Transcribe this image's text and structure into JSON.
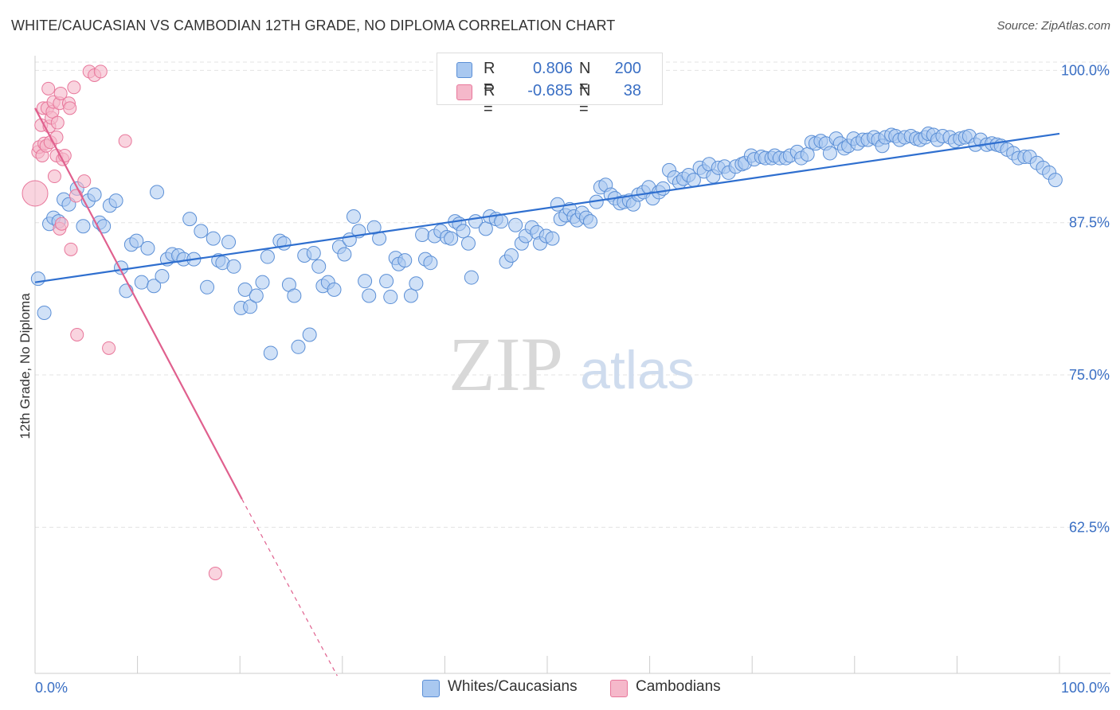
{
  "title": "WHITE/CAUCASIAN VS CAMBODIAN 12TH GRADE, NO DIPLOMA CORRELATION CHART",
  "source": "Source: ZipAtlas.com",
  "watermark": {
    "zip": "ZIP",
    "atlas": "atlas"
  },
  "legend_top": [
    {
      "r_label": "R =",
      "r_value": "0.806",
      "n_label": "N =",
      "n_value": "200",
      "color": "#a9c8f0"
    },
    {
      "r_label": "R =",
      "r_value": "-0.685",
      "n_label": "N =",
      "n_value": "38",
      "color": "#f5b8ca"
    }
  ],
  "legend_bottom": [
    {
      "label": "Whites/Caucasians",
      "color": "#a9c8f0"
    },
    {
      "label": "Cambodians",
      "color": "#f5b8ca"
    }
  ],
  "colors": {
    "blue_fill": "#a9c8f0",
    "blue_stroke": "#5b8fd6",
    "blue_line": "#2f6fcf",
    "pink_fill": "#f5b8ca",
    "pink_stroke": "#e8779b",
    "pink_line": "#e0608e",
    "tick_label": "#3a6fc4",
    "grid": "#e3e3e3"
  },
  "chart_data": {
    "type": "scatter",
    "xlabel": "",
    "ylabel": "12th Grade, No Diploma",
    "xlim": [
      0,
      100
    ],
    "ylim": [
      50.5,
      101.2
    ],
    "x_tick_labels": [
      "0.0%",
      "100.0%"
    ],
    "y_ticks": [
      100.0,
      87.5,
      75.0,
      62.5
    ],
    "y_tick_labels": [
      "100.0%",
      "87.5%",
      "75.0%",
      "62.5%"
    ],
    "grid": "horizontal dashed",
    "series": [
      {
        "name": "Whites/Caucasians",
        "trend": {
          "x": [
            0,
            100
          ],
          "y": [
            82.6,
            94.8
          ]
        },
        "points": [
          [
            0.3,
            82.9
          ],
          [
            0.9,
            80.1
          ],
          [
            1.4,
            87.4
          ],
          [
            1.8,
            87.9
          ],
          [
            2.3,
            87.6
          ],
          [
            2.8,
            89.4
          ],
          [
            3.3,
            89.0
          ],
          [
            4.1,
            90.3
          ],
          [
            4.7,
            87.2
          ],
          [
            5.2,
            89.3
          ],
          [
            5.8,
            89.8
          ],
          [
            6.3,
            87.5
          ],
          [
            6.7,
            87.2
          ],
          [
            7.3,
            88.9
          ],
          [
            7.9,
            89.3
          ],
          [
            8.4,
            83.8
          ],
          [
            8.9,
            81.9
          ],
          [
            9.4,
            85.7
          ],
          [
            9.9,
            86.0
          ],
          [
            10.4,
            82.6
          ],
          [
            11.0,
            85.4
          ],
          [
            11.6,
            82.3
          ],
          [
            11.9,
            90.0
          ],
          [
            12.4,
            83.1
          ],
          [
            12.9,
            84.5
          ],
          [
            13.4,
            84.9
          ],
          [
            14.0,
            84.8
          ],
          [
            14.5,
            84.5
          ],
          [
            15.1,
            87.8
          ],
          [
            15.5,
            84.5
          ],
          [
            16.2,
            86.8
          ],
          [
            16.8,
            82.2
          ],
          [
            17.4,
            86.2
          ],
          [
            17.9,
            84.4
          ],
          [
            18.3,
            84.2
          ],
          [
            18.9,
            85.9
          ],
          [
            19.4,
            83.9
          ],
          [
            20.1,
            80.5
          ],
          [
            20.5,
            82.0
          ],
          [
            21.0,
            80.6
          ],
          [
            21.6,
            81.5
          ],
          [
            22.2,
            82.6
          ],
          [
            22.7,
            84.7
          ],
          [
            23.0,
            76.8
          ],
          [
            23.9,
            86.0
          ],
          [
            24.3,
            85.8
          ],
          [
            24.8,
            82.4
          ],
          [
            25.3,
            81.5
          ],
          [
            25.7,
            77.3
          ],
          [
            26.3,
            84.8
          ],
          [
            26.8,
            78.3
          ],
          [
            27.2,
            85.0
          ],
          [
            27.7,
            83.9
          ],
          [
            28.1,
            82.3
          ],
          [
            28.6,
            82.6
          ],
          [
            29.2,
            82.0
          ],
          [
            29.7,
            85.5
          ],
          [
            30.2,
            84.9
          ],
          [
            30.7,
            86.1
          ],
          [
            31.1,
            88.0
          ],
          [
            31.6,
            86.8
          ],
          [
            32.2,
            82.7
          ],
          [
            32.6,
            81.5
          ],
          [
            33.1,
            87.1
          ],
          [
            33.6,
            86.2
          ],
          [
            34.3,
            82.7
          ],
          [
            34.7,
            81.4
          ],
          [
            35.2,
            84.6
          ],
          [
            35.5,
            84.1
          ],
          [
            36.1,
            84.4
          ],
          [
            36.7,
            81.5
          ],
          [
            37.2,
            82.5
          ],
          [
            37.8,
            86.5
          ],
          [
            38.1,
            84.5
          ],
          [
            38.6,
            84.2
          ],
          [
            39.0,
            86.4
          ],
          [
            39.6,
            86.8
          ],
          [
            40.2,
            86.3
          ],
          [
            40.6,
            86.2
          ],
          [
            41.0,
            87.6
          ],
          [
            41.4,
            87.4
          ],
          [
            41.8,
            86.8
          ],
          [
            42.3,
            85.8
          ],
          [
            42.6,
            83.0
          ],
          [
            43.0,
            87.6
          ],
          [
            44.0,
            87.0
          ],
          [
            44.4,
            88.0
          ],
          [
            45.0,
            87.8
          ],
          [
            45.5,
            87.6
          ],
          [
            46.0,
            84.3
          ],
          [
            46.5,
            84.8
          ],
          [
            46.9,
            87.3
          ],
          [
            47.5,
            85.8
          ],
          [
            47.9,
            86.4
          ],
          [
            48.5,
            87.1
          ],
          [
            49.0,
            86.7
          ],
          [
            49.3,
            85.8
          ],
          [
            49.9,
            86.4
          ],
          [
            50.5,
            86.2
          ],
          [
            51.0,
            89.0
          ],
          [
            51.3,
            87.8
          ],
          [
            51.8,
            88.1
          ],
          [
            52.2,
            88.6
          ],
          [
            52.6,
            88.0
          ],
          [
            52.9,
            87.7
          ],
          [
            53.4,
            88.3
          ],
          [
            53.8,
            87.9
          ],
          [
            54.2,
            87.6
          ],
          [
            54.8,
            89.2
          ],
          [
            55.2,
            90.4
          ],
          [
            55.7,
            90.6
          ],
          [
            56.2,
            89.8
          ],
          [
            56.6,
            89.5
          ],
          [
            57.1,
            89.1
          ],
          [
            57.5,
            89.2
          ],
          [
            58.0,
            89.3
          ],
          [
            58.4,
            89.0
          ],
          [
            58.9,
            89.8
          ],
          [
            59.4,
            90.0
          ],
          [
            59.9,
            90.4
          ],
          [
            60.3,
            89.5
          ],
          [
            60.9,
            90.0
          ],
          [
            61.3,
            90.3
          ],
          [
            61.9,
            91.8
          ],
          [
            62.4,
            91.2
          ],
          [
            62.9,
            90.8
          ],
          [
            63.3,
            91.1
          ],
          [
            63.8,
            91.4
          ],
          [
            64.3,
            91.0
          ],
          [
            64.9,
            92.0
          ],
          [
            65.3,
            91.7
          ],
          [
            65.8,
            92.3
          ],
          [
            66.2,
            91.3
          ],
          [
            66.7,
            92.0
          ],
          [
            67.3,
            92.1
          ],
          [
            67.7,
            91.6
          ],
          [
            68.4,
            92.1
          ],
          [
            69.0,
            92.3
          ],
          [
            69.3,
            92.4
          ],
          [
            69.9,
            93.0
          ],
          [
            70.2,
            92.7
          ],
          [
            70.9,
            92.9
          ],
          [
            71.3,
            92.8
          ],
          [
            71.9,
            92.8
          ],
          [
            72.2,
            93.0
          ],
          [
            72.7,
            92.8
          ],
          [
            73.3,
            92.8
          ],
          [
            73.7,
            93.0
          ],
          [
            74.4,
            93.3
          ],
          [
            74.8,
            92.8
          ],
          [
            75.4,
            93.1
          ],
          [
            75.8,
            94.1
          ],
          [
            76.2,
            94.0
          ],
          [
            76.7,
            94.2
          ],
          [
            77.2,
            94.0
          ],
          [
            77.6,
            93.2
          ],
          [
            78.2,
            94.4
          ],
          [
            78.6,
            94.0
          ],
          [
            79.0,
            93.6
          ],
          [
            79.4,
            93.8
          ],
          [
            79.9,
            94.4
          ],
          [
            80.3,
            94.0
          ],
          [
            80.8,
            94.3
          ],
          [
            81.3,
            94.3
          ],
          [
            81.9,
            94.5
          ],
          [
            82.3,
            94.3
          ],
          [
            82.7,
            93.8
          ],
          [
            83.0,
            94.5
          ],
          [
            83.6,
            94.7
          ],
          [
            84.0,
            94.6
          ],
          [
            84.4,
            94.3
          ],
          [
            84.9,
            94.5
          ],
          [
            85.5,
            94.6
          ],
          [
            86.0,
            94.4
          ],
          [
            86.4,
            94.3
          ],
          [
            86.9,
            94.5
          ],
          [
            87.2,
            94.8
          ],
          [
            87.7,
            94.7
          ],
          [
            88.1,
            94.3
          ],
          [
            88.6,
            94.6
          ],
          [
            89.3,
            94.5
          ],
          [
            89.8,
            94.2
          ],
          [
            90.3,
            94.4
          ],
          [
            90.8,
            94.5
          ],
          [
            91.2,
            94.6
          ],
          [
            91.8,
            93.9
          ],
          [
            92.3,
            94.3
          ],
          [
            92.9,
            93.9
          ],
          [
            93.4,
            94.0
          ],
          [
            93.9,
            93.9
          ],
          [
            94.3,
            93.8
          ],
          [
            94.9,
            93.5
          ],
          [
            95.5,
            93.2
          ],
          [
            96.0,
            92.8
          ],
          [
            96.6,
            92.9
          ],
          [
            97.1,
            92.9
          ],
          [
            97.8,
            92.4
          ],
          [
            98.4,
            92.0
          ],
          [
            99.0,
            91.6
          ],
          [
            99.6,
            91.0
          ]
        ]
      },
      {
        "name": "Cambodians",
        "trend": {
          "x": [
            0,
            20.2
          ],
          "y": [
            96.9,
            64.8
          ]
        },
        "trend_extension": {
          "x": [
            20.2,
            29.5
          ],
          "y": [
            64.8,
            50.3
          ]
        },
        "points": [
          [
            0.0,
            89.9
          ],
          [
            0.3,
            93.3
          ],
          [
            0.4,
            93.7
          ],
          [
            0.6,
            95.5
          ],
          [
            0.7,
            93.0
          ],
          [
            0.8,
            96.9
          ],
          [
            0.9,
            94.0
          ],
          [
            1.1,
            93.8
          ],
          [
            1.2,
            96.9
          ],
          [
            1.3,
            98.5
          ],
          [
            1.4,
            95.4
          ],
          [
            1.5,
            94.1
          ],
          [
            1.6,
            96.1
          ],
          [
            1.7,
            96.6
          ],
          [
            1.8,
            97.4
          ],
          [
            1.9,
            91.3
          ],
          [
            2.1,
            93.0
          ],
          [
            2.1,
            94.5
          ],
          [
            2.2,
            95.7
          ],
          [
            2.4,
            87.0
          ],
          [
            2.4,
            97.3
          ],
          [
            2.5,
            98.1
          ],
          [
            2.6,
            87.4
          ],
          [
            2.7,
            92.7
          ],
          [
            2.9,
            93.0
          ],
          [
            3.3,
            97.3
          ],
          [
            3.4,
            96.9
          ],
          [
            3.5,
            85.3
          ],
          [
            3.8,
            98.6
          ],
          [
            4.0,
            89.7
          ],
          [
            4.1,
            78.3
          ],
          [
            4.8,
            90.9
          ],
          [
            5.3,
            99.9
          ],
          [
            5.8,
            99.6
          ],
          [
            6.4,
            99.9
          ],
          [
            7.2,
            77.2
          ],
          [
            8.8,
            94.2
          ],
          [
            17.6,
            58.7
          ]
        ]
      }
    ]
  }
}
